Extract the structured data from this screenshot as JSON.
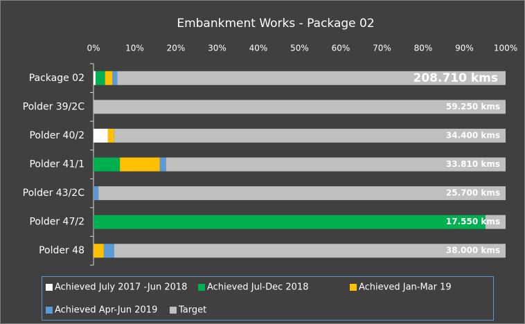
{
  "chart_data": {
    "type": "stacked_barh",
    "title": "Embankment Works - Package 02",
    "categories": [
      "Package 02",
      "Polder 39/2C",
      "Polder 40/2",
      "Polder 41/1",
      "Polder 43/2C",
      "Polder 47/2",
      "Polder 48"
    ],
    "series": [
      {
        "name": "Achieved July 2017 -Jun 2018",
        "color": "#ffffff",
        "values": [
          0.5,
          0,
          3.5,
          0,
          0,
          0,
          0
        ]
      },
      {
        "name": "Achieved Jul-Dec 2018",
        "color": "#00b050",
        "values": [
          2.3,
          0,
          0,
          6.4,
          0,
          95.1,
          0
        ]
      },
      {
        "name": "Achieved Jan-Mar 19",
        "color": "#ffc000",
        "values": [
          1.8,
          0,
          1.5,
          9.7,
          0,
          0,
          2.5
        ]
      },
      {
        "name": "Achieved  Apr-Jun 2019",
        "color": "#5b9bd5",
        "values": [
          1.2,
          0,
          0,
          1.5,
          1.2,
          0,
          2.5
        ]
      },
      {
        "name": "Target",
        "color": "#bfbfbf",
        "values": [
          94.2,
          100,
          95,
          82.4,
          98.8,
          4.9,
          95
        ]
      }
    ],
    "bar_labels": [
      "208.710 kms",
      "59.250 kms",
      "34.400 kms",
      "33.810 kms",
      "25.700 kms",
      "17.550 kms",
      "38.000 kms"
    ],
    "xlim": [
      0,
      100
    ],
    "xticks": [
      {
        "value": 0,
        "label": "0%"
      },
      {
        "value": 10,
        "label": "10%"
      },
      {
        "value": 20,
        "label": "20%"
      },
      {
        "value": 30,
        "label": "30%"
      },
      {
        "value": 40,
        "label": "40%"
      },
      {
        "value": 50,
        "label": "50%"
      },
      {
        "value": 60,
        "label": "60%"
      },
      {
        "value": 70,
        "label": "70%"
      },
      {
        "value": 80,
        "label": "80%"
      },
      {
        "value": 90,
        "label": "90%"
      },
      {
        "value": 100,
        "label": "100%"
      }
    ],
    "grid": false,
    "legend": "bottom"
  }
}
